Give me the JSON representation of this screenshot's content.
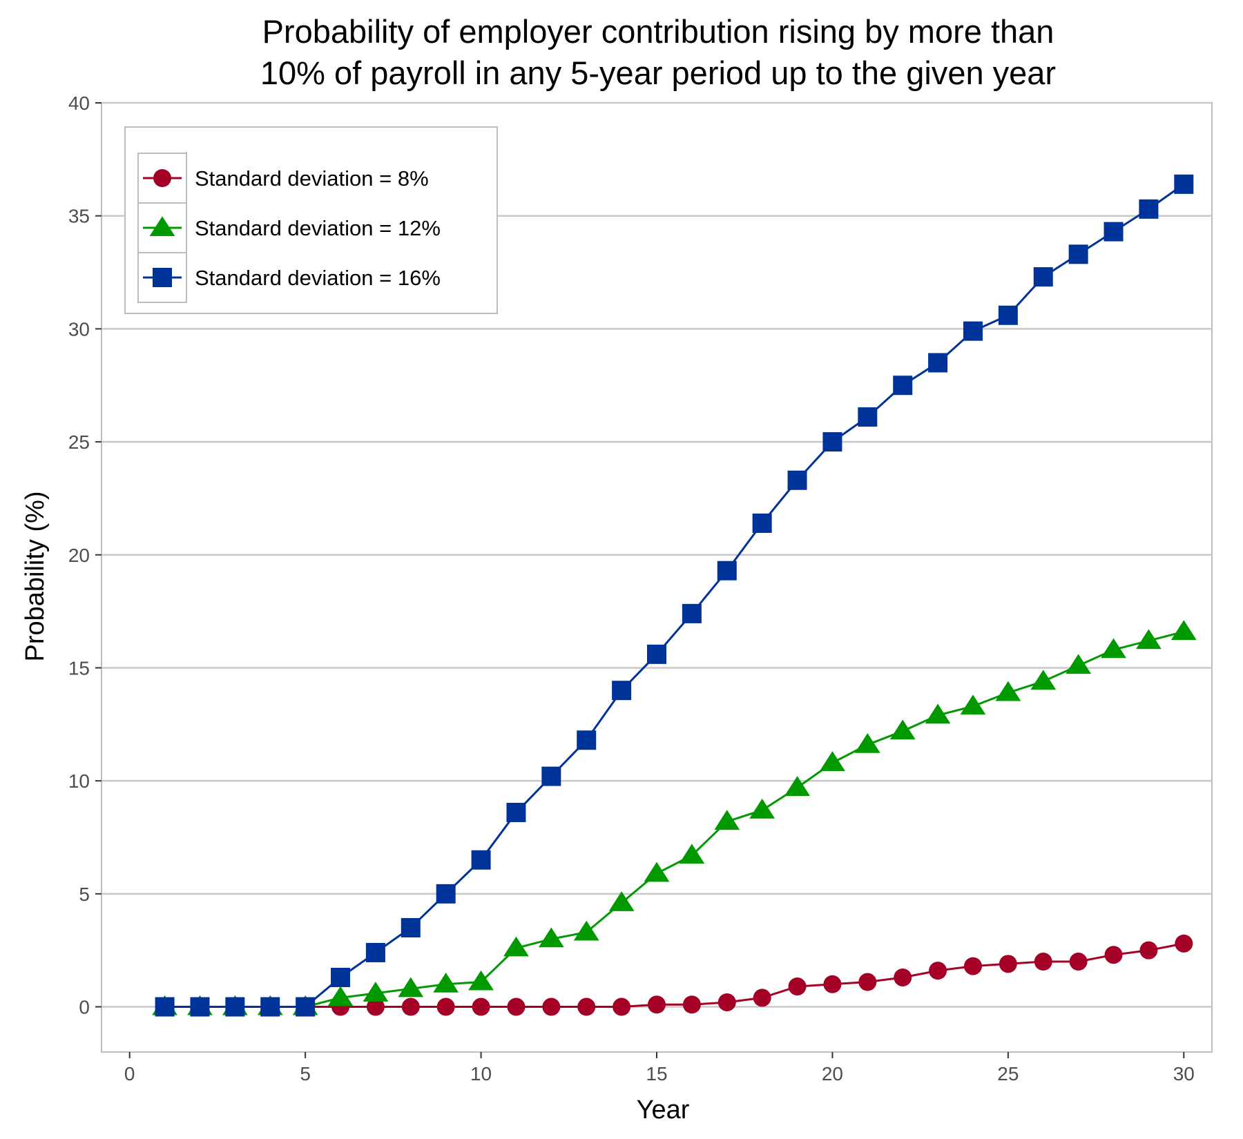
{
  "chart_data": {
    "type": "line",
    "title": "Probability of employer contribution rising by more than\n10% of payroll in any 5-year period up to the given year",
    "xlabel": "Year",
    "ylabel": "Probability (%)",
    "xlim": [
      0,
      30
    ],
    "ylim": [
      -2,
      40
    ],
    "x_ticks": [
      0,
      5,
      10,
      15,
      20,
      25,
      30
    ],
    "y_ticks": [
      0,
      5,
      10,
      15,
      20,
      25,
      30,
      35,
      40
    ],
    "grid": "horizontal major",
    "legend_position": "top-left",
    "x": [
      1,
      2,
      3,
      4,
      5,
      6,
      7,
      8,
      9,
      10,
      11,
      12,
      13,
      14,
      15,
      16,
      17,
      18,
      19,
      20,
      21,
      22,
      23,
      24,
      25,
      26,
      27,
      28,
      29,
      30
    ],
    "series": [
      {
        "name": "Standard deviation = 8%",
        "color": "#a50026",
        "marker": "circle",
        "values": [
          0,
          0,
          0,
          0,
          0,
          0,
          0,
          0,
          0,
          0,
          0,
          0,
          0,
          0,
          0.1,
          0.1,
          0.2,
          0.4,
          0.9,
          1.0,
          1.1,
          1.3,
          1.6,
          1.8,
          1.9,
          2.0,
          2.0,
          2.3,
          2.5,
          2.8
        ]
      },
      {
        "name": "Standard deviation = 12%",
        "color": "#009900",
        "marker": "triangle",
        "values": [
          0,
          0,
          0,
          0,
          0,
          0.4,
          0.6,
          0.8,
          1.0,
          1.1,
          2.6,
          3.0,
          3.3,
          4.6,
          5.9,
          6.7,
          8.2,
          8.7,
          9.7,
          10.8,
          11.6,
          12.2,
          12.9,
          13.3,
          13.9,
          14.4,
          15.1,
          15.8,
          16.2,
          16.6
        ]
      },
      {
        "name": "Standard deviation = 16%",
        "color": "#003399",
        "marker": "square",
        "values": [
          0,
          0,
          0,
          0,
          0,
          1.3,
          2.4,
          3.5,
          5.0,
          6.5,
          8.6,
          10.2,
          11.8,
          14.0,
          15.6,
          17.4,
          19.3,
          21.4,
          23.3,
          25.0,
          26.1,
          27.5,
          28.5,
          29.9,
          30.6,
          32.3,
          33.3,
          34.3,
          35.3,
          36.4
        ]
      }
    ]
  }
}
